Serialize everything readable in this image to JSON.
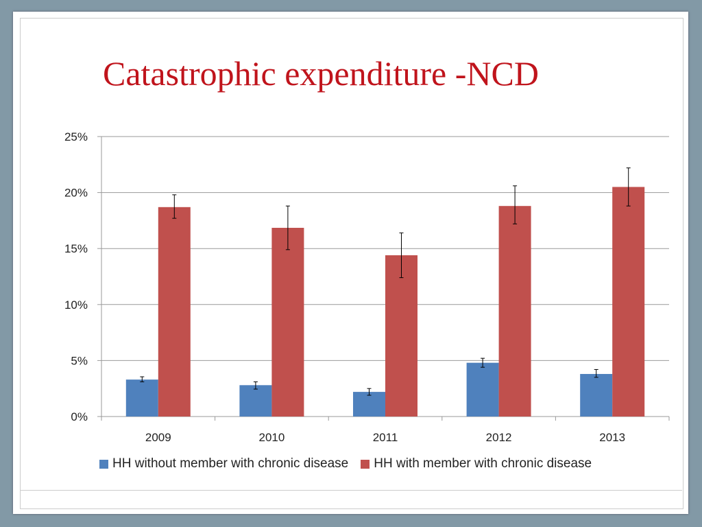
{
  "title": "Catastrophic expenditure -NCD",
  "chart_data": {
    "type": "bar",
    "title": "Catastrophic expenditure -NCD",
    "categories": [
      "2009",
      "2010",
      "2011",
      "2012",
      "2013"
    ],
    "ylim": [
      0,
      25
    ],
    "yticks": [
      "0%",
      "5%",
      "10%",
      "15%",
      "20%",
      "25%"
    ],
    "grid": true,
    "legend_position": "bottom",
    "series": [
      {
        "name": "HH without member with chronic disease",
        "color": "#4f81bd",
        "values": [
          3.3,
          2.8,
          2.2,
          4.8,
          3.8
        ],
        "error_low": [
          3.1,
          2.45,
          1.9,
          4.4,
          3.5
        ],
        "error_high": [
          3.55,
          3.1,
          2.5,
          5.2,
          4.2
        ]
      },
      {
        "name": "HH with member with chronic disease",
        "color": "#c0504d",
        "values": [
          18.7,
          16.85,
          14.4,
          18.8,
          20.5
        ],
        "error_low": [
          17.7,
          14.9,
          12.4,
          17.2,
          18.8
        ],
        "error_high": [
          19.8,
          18.8,
          16.4,
          20.6,
          22.2
        ]
      }
    ]
  }
}
